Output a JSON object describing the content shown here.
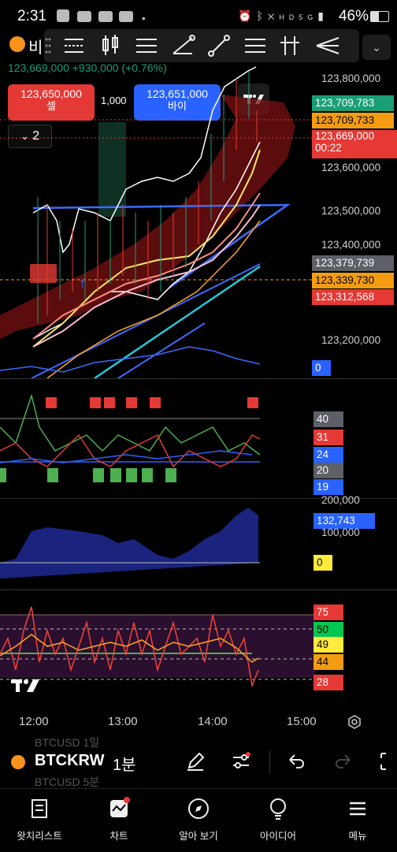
{
  "status_bar": {
    "time": "2:31",
    "battery": "46%"
  },
  "symbol_short": "비",
  "change_text": "+930,000 (+0.76%)",
  "price_line_text": "123,669,000",
  "sell_box": {
    "price": "123,650,000",
    "label": "셀"
  },
  "spread": "1,000",
  "buy_box": {
    "price": "123,651,000",
    "label": "바이"
  },
  "collapse_count": "2",
  "price_axis": {
    "labels": [
      "123,800,000",
      "123,600,000",
      "123,500,000",
      "123,400,000",
      "123,200,000"
    ],
    "tags": {
      "t1": "123,709,783",
      "t2": "123,709,733",
      "t3": "123,669,000",
      "t3_countdown": "00:22",
      "t4": "123,379,739",
      "t5": "123,339,730",
      "t6": "123,312,568",
      "t7": "0"
    }
  },
  "panel2_tags": [
    "40",
    "31",
    "24",
    "20",
    "19"
  ],
  "panel3_labels": {
    "v1": "200,000",
    "v2": "100,000",
    "tag": "132,743",
    "zero": "0"
  },
  "panel4_tags": [
    "75",
    "50",
    "49",
    "44",
    "28"
  ],
  "time_axis": [
    "12:00",
    "13:00",
    "14:00",
    "15:00"
  ],
  "bottom_toolbar": {
    "symbol": "BTCKRW",
    "interval": "1분",
    "ghost1": "BTCUSD 1일",
    "ghost2": "BTCUSD 5분"
  },
  "nav": [
    "왓치리스트",
    "차트",
    "알아 보기",
    "아이디어",
    "메뉴"
  ],
  "colors": {
    "green_tag": "#1a9e78",
    "orange_tag": "#f39c12",
    "red_tag": "#e53935",
    "blue_tag": "#2962ff",
    "grey_tag": "#5d6067"
  }
}
